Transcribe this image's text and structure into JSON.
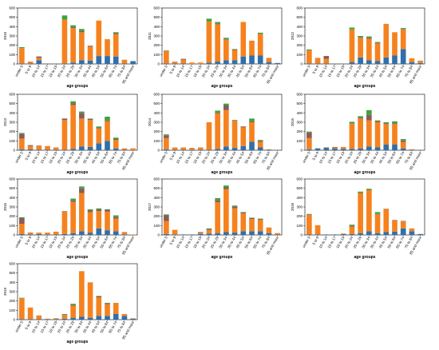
{
  "colors": {
    "blue": "#2f6fac",
    "orange": "#f5821f",
    "brown": "#8c5a58",
    "green": "#3aa63a"
  },
  "chart_data": [
    {
      "type": "bar",
      "ylabel": "2010",
      "xlabel": "age groups",
      "ylim": [
        0,
        600
      ],
      "yticks": [
        0,
        100,
        200,
        300,
        400,
        500,
        600
      ],
      "categories": [
        "under 5",
        "5 to 9",
        "10 to 14",
        "15 to 17",
        "18 to 19",
        "20 to 24",
        "25 to 29",
        "30 to 34",
        "35 to 44",
        "45 to 54",
        "55 to 64",
        "65 to 74",
        "75 to 84",
        "85 and more"
      ],
      "series": [
        {
          "color": "blue",
          "values": [
            5,
            5,
            40,
            0,
            0,
            5,
            15,
            40,
            35,
            85,
            85,
            80,
            5,
            30
          ]
        },
        {
          "color": "orange",
          "values": [
            165,
            20,
            25,
            0,
            0,
            470,
            370,
            300,
            150,
            380,
            180,
            240,
            40,
            0
          ]
        },
        {
          "color": "brown",
          "values": [
            0,
            0,
            15,
            0,
            0,
            0,
            10,
            15,
            10,
            0,
            0,
            10,
            0,
            0
          ]
        },
        {
          "color": "green",
          "values": [
            10,
            0,
            0,
            0,
            0,
            45,
            20,
            20,
            0,
            0,
            0,
            10,
            0,
            0
          ]
        }
      ]
    },
    {
      "type": "bar",
      "ylabel": "2011",
      "xlabel": "age groups",
      "ylim": [
        0,
        600
      ],
      "yticks": [
        0,
        100,
        200,
        300,
        400,
        500,
        600
      ],
      "categories": [
        "under 5",
        "5 to 9",
        "10 to 14",
        "15 to 17",
        "18 to 19",
        "20 to 24",
        "25 to 29",
        "30 to 34",
        "35 to 44",
        "45 to 54",
        "55 to 64",
        "65 to 74",
        "75 to 84",
        "85 and more"
      ],
      "series": [
        {
          "color": "blue",
          "values": [
            5,
            5,
            5,
            0,
            0,
            15,
            25,
            40,
            40,
            80,
            90,
            90,
            20,
            10
          ]
        },
        {
          "color": "orange",
          "values": [
            135,
            20,
            40,
            15,
            15,
            440,
            400,
            220,
            110,
            370,
            160,
            230,
            45,
            0
          ]
        },
        {
          "color": "brown",
          "values": [
            0,
            0,
            10,
            0,
            0,
            0,
            10,
            5,
            5,
            0,
            0,
            5,
            0,
            0
          ]
        },
        {
          "color": "green",
          "values": [
            5,
            0,
            0,
            0,
            0,
            30,
            15,
            15,
            5,
            0,
            0,
            10,
            0,
            0
          ]
        }
      ]
    },
    {
      "type": "bar",
      "ylabel": "2012",
      "xlabel": "age groups",
      "ylim": [
        0,
        600
      ],
      "yticks": [
        0,
        100,
        200,
        300,
        400,
        500,
        600
      ],
      "categories": [
        "under 5",
        "5 to 9",
        "10 to 14",
        "15 to 17",
        "18 to 19",
        "20 to 24",
        "25 to 29",
        "30 to 34",
        "35 to 44",
        "45 to 54",
        "55 to 64",
        "65 to 74",
        "75 to 84",
        "85 and more"
      ],
      "series": [
        {
          "color": "blue",
          "values": [
            5,
            5,
            5,
            0,
            0,
            20,
            70,
            40,
            30,
            70,
            90,
            160,
            20,
            10
          ]
        },
        {
          "color": "orange",
          "values": [
            140,
            60,
            50,
            0,
            0,
            350,
            210,
            230,
            190,
            360,
            250,
            210,
            40,
            25
          ]
        },
        {
          "color": "brown",
          "values": [
            0,
            0,
            30,
            0,
            0,
            0,
            10,
            10,
            10,
            0,
            0,
            5,
            0,
            0
          ]
        },
        {
          "color": "green",
          "values": [
            10,
            0,
            0,
            0,
            0,
            20,
            10,
            15,
            5,
            0,
            0,
            10,
            0,
            0
          ]
        }
      ]
    },
    {
      "type": "bar",
      "ylabel": "2013",
      "xlabel": "age groups",
      "ylim": [
        0,
        600
      ],
      "yticks": [
        0,
        100,
        200,
        300,
        400,
        500,
        600
      ],
      "categories": [
        "under 5",
        "5 to 9",
        "10 to 14",
        "15 to 17",
        "18 to 19",
        "20 to 24",
        "25 to 29",
        "30 to 34",
        "35 to 44",
        "45 to 54",
        "55 to 64",
        "65 to 74",
        "75 to 84",
        "85 and more"
      ],
      "series": [
        {
          "color": "blue",
          "values": [
            10,
            10,
            5,
            5,
            5,
            5,
            15,
            40,
            35,
            75,
            100,
            20,
            5,
            0
          ]
        },
        {
          "color": "orange",
          "values": [
            115,
            35,
            40,
            40,
            25,
            320,
            470,
            300,
            290,
            160,
            210,
            90,
            15,
            20
          ]
        },
        {
          "color": "brown",
          "values": [
            50,
            10,
            5,
            0,
            0,
            15,
            20,
            60,
            10,
            10,
            10,
            10,
            0,
            0
          ]
        },
        {
          "color": "green",
          "values": [
            10,
            0,
            0,
            0,
            0,
            0,
            20,
            15,
            5,
            10,
            40,
            15,
            0,
            0
          ]
        }
      ]
    },
    {
      "type": "bar",
      "ylabel": "2014",
      "xlabel": "age groups",
      "ylim": [
        0,
        600
      ],
      "yticks": [
        0,
        100,
        200,
        300,
        400,
        500,
        600
      ],
      "categories": [
        "under 5",
        "5 to 9",
        "10 to 14",
        "15 to 17",
        "18 to 19",
        "20 to 24",
        "25 to 29",
        "30 to 34",
        "35 to 44",
        "45 to 54",
        "55 to 64",
        "65 to 74",
        "75 to 84",
        "85 and more"
      ],
      "series": [
        {
          "color": "blue",
          "values": [
            10,
            5,
            5,
            5,
            5,
            5,
            15,
            40,
            25,
            45,
            90,
            30,
            5,
            0
          ]
        },
        {
          "color": "orange",
          "values": [
            120,
            25,
            25,
            20,
            25,
            295,
            380,
            390,
            290,
            200,
            210,
            60,
            5,
            0
          ]
        },
        {
          "color": "brown",
          "values": [
            30,
            0,
            0,
            0,
            0,
            0,
            10,
            50,
            5,
            10,
            10,
            10,
            0,
            0
          ]
        },
        {
          "color": "green",
          "values": [
            10,
            0,
            0,
            0,
            0,
            0,
            20,
            20,
            5,
            0,
            30,
            10,
            0,
            0
          ]
        }
      ]
    },
    {
      "type": "bar",
      "ylabel": "2015",
      "xlabel": "age groups",
      "ylim": [
        0,
        600
      ],
      "yticks": [
        0,
        100,
        200,
        300,
        400,
        500,
        600
      ],
      "categories": [
        "under 5",
        "5 to 9",
        "10 to 14",
        "15 to 17",
        "18 to 19",
        "20 to 24",
        "25 to 29",
        "30 to 34",
        "35 to 44",
        "45 to 54",
        "55 to 64",
        "65 to 74",
        "75 to 84",
        "85 and more"
      ],
      "series": [
        {
          "color": "blue",
          "values": [
            10,
            20,
            25,
            20,
            15,
            15,
            20,
            40,
            30,
            60,
            60,
            20,
            5,
            0
          ]
        },
        {
          "color": "orange",
          "values": [
            120,
            0,
            0,
            10,
            20,
            270,
            320,
            280,
            270,
            220,
            220,
            70,
            5,
            0
          ]
        },
        {
          "color": "brown",
          "values": [
            60,
            0,
            5,
            5,
            0,
            5,
            10,
            60,
            15,
            10,
            10,
            15,
            0,
            0
          ]
        },
        {
          "color": "green",
          "values": [
            10,
            0,
            0,
            0,
            0,
            15,
            15,
            50,
            5,
            10,
            20,
            15,
            0,
            0
          ]
        }
      ]
    },
    {
      "type": "bar",
      "ylabel": "2016",
      "xlabel": "age groups",
      "ylim": [
        0,
        600
      ],
      "yticks": [
        0,
        100,
        200,
        300,
        400,
        500,
        600
      ],
      "categories": [
        "under 5",
        "5 to 9",
        "10 to 14",
        "15 to 17",
        "18 to 19",
        "20 to 24",
        "25 to 29",
        "30 to 34",
        "35 to 44",
        "45 to 54",
        "55 to 64",
        "65 to 74",
        "75 to 84",
        "85 and more"
      ],
      "series": [
        {
          "color": "blue",
          "values": [
            10,
            5,
            10,
            5,
            5,
            10,
            20,
            40,
            25,
            70,
            50,
            40,
            5,
            0
          ]
        },
        {
          "color": "orange",
          "values": [
            110,
            15,
            15,
            20,
            30,
            240,
            335,
            410,
            220,
            185,
            200,
            135,
            20,
            5
          ]
        },
        {
          "color": "brown",
          "values": [
            60,
            5,
            0,
            0,
            0,
            5,
            15,
            50,
            20,
            20,
            20,
            20,
            5,
            0
          ]
        },
        {
          "color": "green",
          "values": [
            10,
            0,
            0,
            0,
            0,
            0,
            20,
            20,
            10,
            10,
            5,
            15,
            0,
            0
          ]
        }
      ]
    },
    {
      "type": "bar",
      "ylabel": "2017",
      "xlabel": "age groups",
      "ylim": [
        0,
        600
      ],
      "yticks": [
        0,
        100,
        200,
        300,
        400,
        500,
        600
      ],
      "categories": [
        "under 5",
        "5 to 9",
        "10 to 14",
        "15 to 17",
        "18 to 19",
        "20 to 24",
        "25 to 29",
        "30 to 34",
        "35 to 44",
        "45 to 54",
        "55 to 64",
        "65 to 74",
        "75 to 84",
        "85 and more"
      ],
      "series": [
        {
          "color": "blue",
          "values": [
            10,
            5,
            5,
            5,
            10,
            15,
            20,
            30,
            25,
            40,
            40,
            40,
            20,
            5
          ]
        },
        {
          "color": "orange",
          "values": [
            140,
            50,
            0,
            0,
            10,
            40,
            330,
            460,
            260,
            190,
            130,
            120,
            60,
            15
          ]
        },
        {
          "color": "brown",
          "values": [
            60,
            0,
            0,
            0,
            10,
            10,
            25,
            20,
            20,
            10,
            10,
            10,
            0,
            0
          ]
        },
        {
          "color": "green",
          "values": [
            10,
            0,
            0,
            0,
            0,
            5,
            20,
            20,
            10,
            5,
            5,
            5,
            0,
            0
          ]
        }
      ]
    },
    {
      "type": "bar",
      "ylabel": "2018",
      "xlabel": "age groups",
      "ylim": [
        0,
        600
      ],
      "yticks": [
        0,
        100,
        200,
        300,
        400,
        500,
        600
      ],
      "categories": [
        "under 5",
        "5 to 9",
        "10 to 14",
        "15 to 17",
        "18 to 19",
        "20 to 24",
        "25 to 29",
        "30 to 34",
        "35 to 44",
        "45 to 54",
        "55 to 64",
        "65 to 74",
        "75 to 84",
        "85 and more"
      ],
      "series": [
        {
          "color": "blue",
          "values": [
            5,
            5,
            5,
            5,
            10,
            10,
            20,
            40,
            20,
            30,
            35,
            70,
            40,
            10
          ]
        },
        {
          "color": "orange",
          "values": [
            210,
            100,
            0,
            0,
            5,
            80,
            430,
            440,
            200,
            245,
            120,
            75,
            30,
            0
          ]
        },
        {
          "color": "brown",
          "values": [
            5,
            0,
            0,
            0,
            0,
            10,
            5,
            5,
            5,
            5,
            5,
            5,
            0,
            0
          ]
        },
        {
          "color": "green",
          "values": [
            5,
            0,
            0,
            0,
            0,
            10,
            10,
            10,
            20,
            0,
            0,
            0,
            0,
            0
          ]
        }
      ]
    },
    {
      "type": "bar",
      "ylabel": "2019",
      "xlabel": "age groups",
      "ylim": [
        0,
        600
      ],
      "yticks": [
        0,
        100,
        200,
        300,
        400,
        500,
        600
      ],
      "categories": [
        "under 5",
        "5 to 9",
        "10 to 14",
        "15 to 17",
        "18 to 19",
        "20 to 24",
        "25 to 29",
        "30 to 34",
        "35 to 44",
        "45 to 54",
        "55 to 64",
        "65 to 74",
        "75 to 84",
        "85 and more"
      ],
      "series": [
        {
          "color": "blue",
          "values": [
            5,
            5,
            5,
            5,
            5,
            10,
            20,
            30,
            20,
            40,
            40,
            60,
            40,
            10
          ]
        },
        {
          "color": "orange",
          "values": [
            225,
            125,
            40,
            5,
            10,
            40,
            130,
            490,
            380,
            200,
            125,
            120,
            20,
            5
          ]
        },
        {
          "color": "brown",
          "values": [
            0,
            0,
            0,
            0,
            0,
            5,
            10,
            0,
            0,
            10,
            10,
            0,
            0,
            0
          ]
        },
        {
          "color": "green",
          "values": [
            5,
            0,
            0,
            0,
            0,
            5,
            10,
            0,
            0,
            5,
            5,
            0,
            0,
            0
          ]
        }
      ]
    }
  ]
}
